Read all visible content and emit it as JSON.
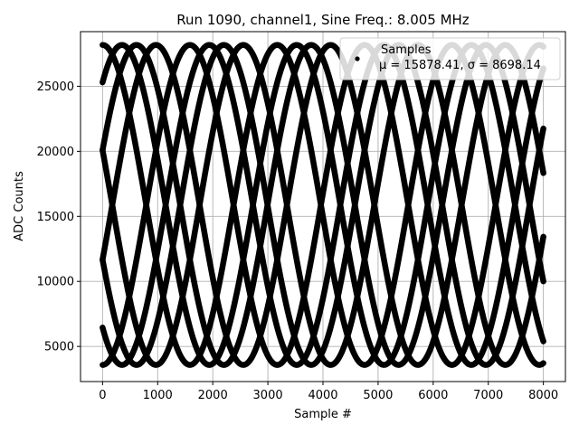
{
  "chart_data": {
    "type": "scatter",
    "title": "Run 1090, channel1, Sine Freq.: 8.005 MHz",
    "xlabel": "Sample #",
    "ylabel": "ADC Counts",
    "xlim": [
      -400,
      8400
    ],
    "ylim": [
      2300,
      29200
    ],
    "xticks": [
      0,
      1000,
      2000,
      3000,
      4000,
      5000,
      6000,
      7000,
      8000
    ],
    "xtick_labels": [
      "0",
      "1000",
      "2000",
      "3000",
      "4000",
      "5000",
      "6000",
      "7000",
      "8000"
    ],
    "yticks": [
      5000,
      10000,
      15000,
      20000,
      25000
    ],
    "ytick_labels": [
      "5000",
      "10000",
      "15000",
      "20000",
      "25000"
    ],
    "grid": true,
    "legend_position": "top-right",
    "legend_marker_color": "#000000",
    "series": [
      {
        "name": "Samples",
        "stats_label": "μ = 15878.41, σ = 8698.14",
        "color": "#000000",
        "marker": "point",
        "sinusoid": {
          "x_range": [
            0,
            8000
          ],
          "period": 3170,
          "mean": 15878.41,
          "amplitude": 12300,
          "max": 28180,
          "min": 3580,
          "phases_deg": [
            90,
            160,
            20,
            230,
            270,
            340,
            200,
            50
          ]
        }
      }
    ]
  }
}
